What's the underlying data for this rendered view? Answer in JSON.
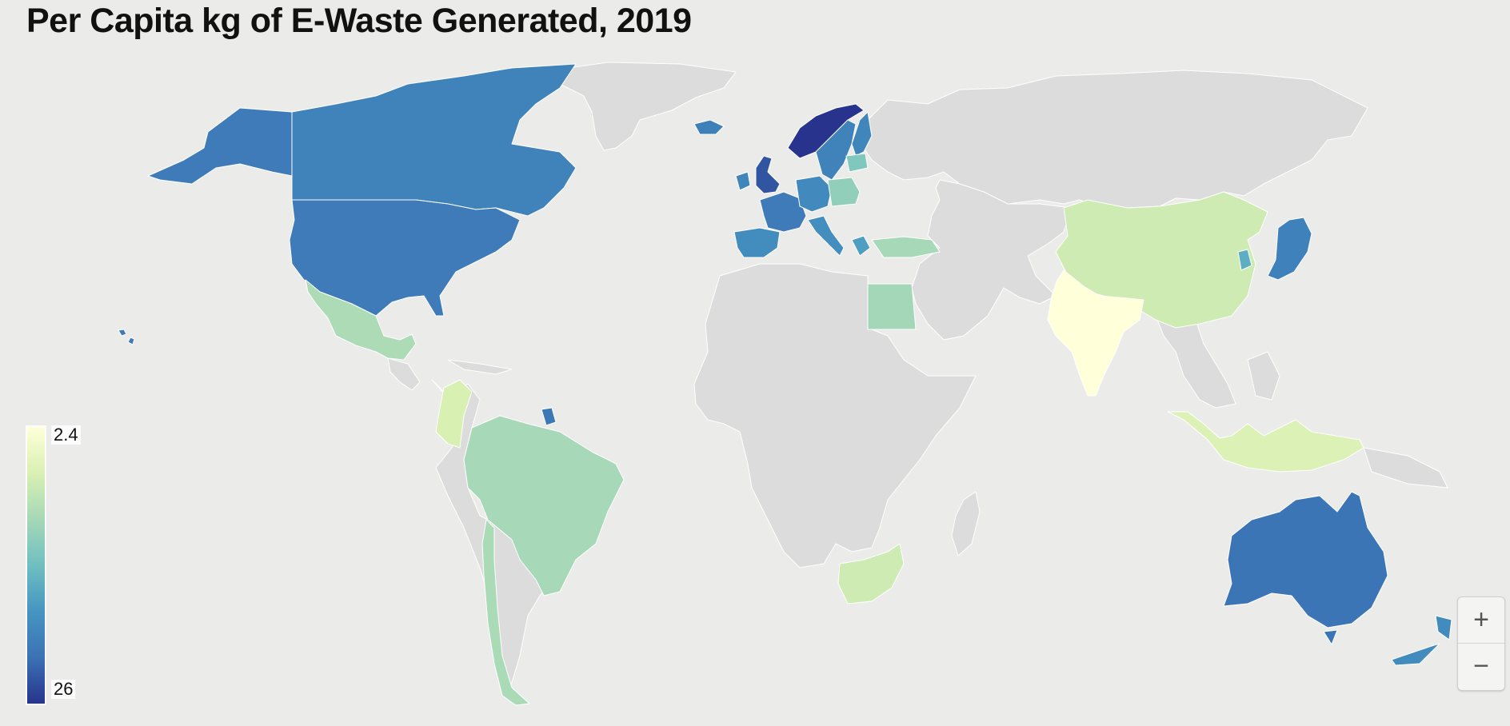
{
  "title": "Per Capita kg of E-Waste Generated, 2019",
  "legend": {
    "min_label": "2.4",
    "max_label": "26",
    "min_value": 2.4,
    "max_value": 26,
    "colors": [
      "#ffffd9",
      "#d9f0b3",
      "#a6d8b7",
      "#6fbfc1",
      "#4595c1",
      "#3b72b4",
      "#27338c"
    ]
  },
  "zoom": {
    "in_label": "+",
    "out_label": "−"
  },
  "colors": {
    "no_data": "#dcdcdc",
    "background": "#ebebe9",
    "border": "#ffffff"
  },
  "regions": [
    {
      "name": "Canada",
      "value": 20.2
    },
    {
      "name": "United States",
      "value": 21.0
    },
    {
      "name": "Alaska (US)",
      "value": 21.0
    },
    {
      "name": "Mexico",
      "value": 9.7
    },
    {
      "name": "Colombia",
      "value": 6.3
    },
    {
      "name": "Brazil",
      "value": 10.2
    },
    {
      "name": "Chile",
      "value": 9.9
    },
    {
      "name": "Suriname",
      "value": 21.5
    },
    {
      "name": "Iceland",
      "value": 20.5
    },
    {
      "name": "Norway",
      "value": 26.0
    },
    {
      "name": "Sweden",
      "value": 20.1
    },
    {
      "name": "Finland",
      "value": 19.8
    },
    {
      "name": "United Kingdom",
      "value": 23.9
    },
    {
      "name": "Ireland",
      "value": 19.9
    },
    {
      "name": "France",
      "value": 21.0
    },
    {
      "name": "Spain",
      "value": 19.0
    },
    {
      "name": "Germany",
      "value": 19.4
    },
    {
      "name": "Italy",
      "value": 18.9
    },
    {
      "name": "Poland",
      "value": 11.7
    },
    {
      "name": "Baltic States",
      "value": 13.0
    },
    {
      "name": "Greece",
      "value": 17.3
    },
    {
      "name": "Turkey",
      "value": 10.2
    },
    {
      "name": "Egypt",
      "value": 10.4
    },
    {
      "name": "South Africa",
      "value": 7.1
    },
    {
      "name": "China",
      "value": 7.2
    },
    {
      "name": "India",
      "value": 2.4
    },
    {
      "name": "Japan",
      "value": 20.4
    },
    {
      "name": "South Korea",
      "value": 15.8
    },
    {
      "name": "Indonesia",
      "value": 6.1
    },
    {
      "name": "Australia",
      "value": 21.7
    },
    {
      "name": "New Zealand",
      "value": 19.2
    },
    {
      "name": "Hawaii (US)",
      "value": 21.0
    },
    {
      "name": "Greenland",
      "value": null
    },
    {
      "name": "Russia",
      "value": null
    },
    {
      "name": "Africa (other)",
      "value": null
    },
    {
      "name": "Middle East & Central Asia",
      "value": null
    },
    {
      "name": "South America (other)",
      "value": null
    },
    {
      "name": "Southeast Asia (other)",
      "value": null
    },
    {
      "name": "Madagascar",
      "value": null
    },
    {
      "name": "Central America (other)",
      "value": null
    }
  ]
}
